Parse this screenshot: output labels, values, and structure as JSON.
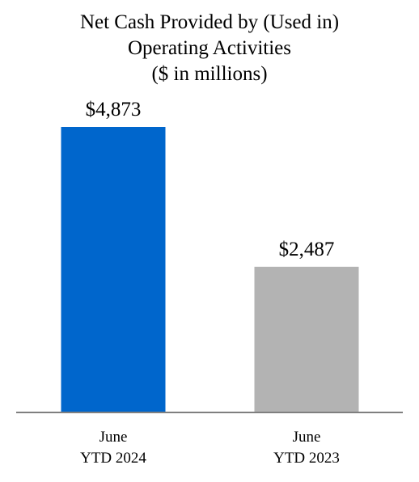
{
  "chart_data": {
    "type": "bar",
    "title_lines": [
      "Net Cash Provided by (Used in)",
      "Operating Activities",
      "($ in millions)"
    ],
    "categories": [
      [
        "June",
        "YTD 2024"
      ],
      [
        "June",
        "YTD 2023"
      ]
    ],
    "values": [
      4873,
      2487
    ],
    "value_labels": [
      "$4,873",
      "$2,487"
    ],
    "colors": [
      "#0066cc",
      "#b3b3b3"
    ],
    "axis_color": "#7f7f7f",
    "ylim": [
      0,
      4873
    ]
  }
}
